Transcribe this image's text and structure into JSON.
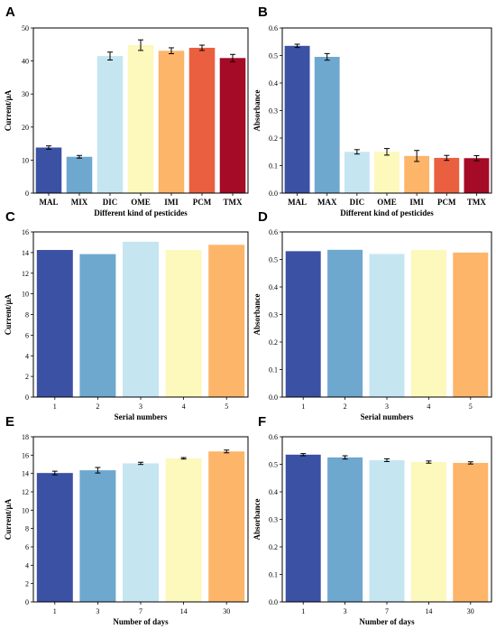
{
  "chart_data": [
    {
      "panel": "A",
      "type": "bar",
      "categories": [
        "MAL",
        "MIX",
        "DIC",
        "OME",
        "IMI",
        "PCM",
        "TMX"
      ],
      "values": [
        13.8,
        11.0,
        41.5,
        44.8,
        43.1,
        44.0,
        40.9
      ],
      "errors": [
        0.5,
        0.4,
        1.2,
        1.6,
        0.9,
        0.8,
        1.1
      ],
      "xlabel": "Different kind of pesticides",
      "ylabel": "Current/μA",
      "ylim": [
        0,
        50
      ],
      "yticks": [
        0,
        10,
        20,
        30,
        40,
        50
      ]
    },
    {
      "panel": "B",
      "type": "bar",
      "categories": [
        "MAL",
        "MAX",
        "DIC",
        "OME",
        "IMI",
        "PCM",
        "TMX"
      ],
      "values": [
        0.535,
        0.495,
        0.15,
        0.15,
        0.135,
        0.128,
        0.127
      ],
      "errors": [
        0.006,
        0.012,
        0.008,
        0.012,
        0.02,
        0.009,
        0.009
      ],
      "xlabel": "Different kind of pesticides",
      "ylabel": "Absorbance",
      "ylim": [
        0,
        0.6
      ],
      "yticks": [
        "0.0",
        "0.1",
        "0.2",
        "0.3",
        "0.4",
        "0.5",
        "0.6"
      ]
    },
    {
      "panel": "C",
      "type": "bar",
      "categories": [
        "1",
        "2",
        "3",
        "4",
        "5"
      ],
      "values": [
        14.25,
        13.85,
        15.05,
        14.25,
        14.75
      ],
      "xlabel": "Serial numbers",
      "ylabel": "Current/μA",
      "ylim": [
        0,
        16
      ],
      "yticks": [
        0,
        2,
        4,
        6,
        8,
        10,
        12,
        14,
        16
      ]
    },
    {
      "panel": "D",
      "type": "bar",
      "categories": [
        "1",
        "2",
        "3",
        "4",
        "5"
      ],
      "values": [
        0.53,
        0.535,
        0.52,
        0.535,
        0.525
      ],
      "xlabel": "Serial numbers",
      "ylabel": "Absorbance",
      "ylim": [
        0,
        0.6
      ],
      "yticks": [
        "0.0",
        "0.1",
        "0.2",
        "0.3",
        "0.4",
        "0.5",
        "0.6"
      ]
    },
    {
      "panel": "E",
      "type": "bar",
      "categories": [
        "1",
        "3",
        "7",
        "14",
        "30"
      ],
      "values": [
        14.05,
        14.35,
        15.1,
        15.65,
        16.4
      ],
      "errors": [
        0.2,
        0.3,
        0.12,
        0.08,
        0.15
      ],
      "xlabel": "Number of days",
      "ylabel": "Current/μA",
      "ylim": [
        0,
        18
      ],
      "yticks": [
        0,
        2,
        4,
        6,
        8,
        10,
        12,
        14,
        16,
        18
      ]
    },
    {
      "panel": "F",
      "type": "bar",
      "categories": [
        "1",
        "3",
        "7",
        "14",
        "30"
      ],
      "values": [
        0.535,
        0.525,
        0.515,
        0.508,
        0.505
      ],
      "errors": [
        0.004,
        0.006,
        0.005,
        0.004,
        0.004
      ],
      "xlabel": "Number of days",
      "ylabel": "Absorbance",
      "ylim": [
        0,
        0.6
      ],
      "yticks": [
        "0.0",
        "0.1",
        "0.2",
        "0.3",
        "0.4",
        "0.5",
        "0.6"
      ]
    }
  ],
  "colors": {
    "bars7": [
      "#3b51a3",
      "#6ea8ce",
      "#c5e6f1",
      "#fdf8bb",
      "#fdb56a",
      "#e95f3f",
      "#a50a26"
    ],
    "bars5": [
      "#3b51a3",
      "#6ea8ce",
      "#c5e6f1",
      "#fdf8bb",
      "#fdb56a"
    ]
  }
}
